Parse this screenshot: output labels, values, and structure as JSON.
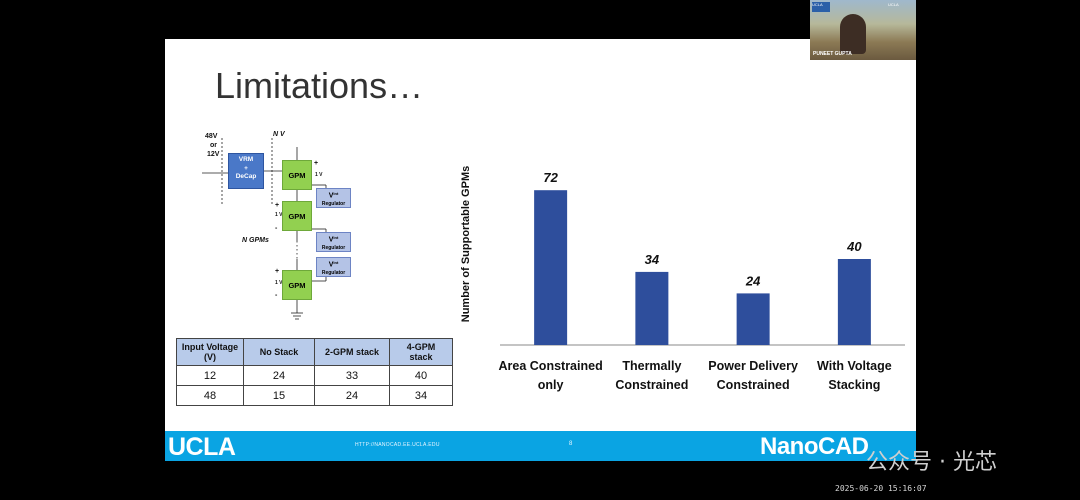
{
  "slide": {
    "title": "Limitations…",
    "diagram": {
      "input_v_1": "48V",
      "input_v_2": "or",
      "input_v_3": "12V",
      "n_v": "N V",
      "vrm_l1": "VRM",
      "vrm_l2": "+",
      "vrm_l3": "DeCap",
      "gpm": "GPM",
      "plus": "+",
      "minus": "-",
      "one_v": "1 V",
      "regulator_v": "V",
      "regulator_sup": "int",
      "regulator": "Regulator",
      "n_gpms": "N GPMs"
    },
    "table": {
      "headers": [
        "Input Voltage (V)",
        "No Stack",
        "2-GPM stack",
        "4-GPM stack"
      ],
      "rows": [
        [
          "12",
          "24",
          "33",
          "40"
        ],
        [
          "48",
          "15",
          "24",
          "34"
        ]
      ]
    },
    "footer": {
      "logo_left": "UCLA",
      "url": "HTTP://NANOCAD.EE.UCLA.EDU",
      "page": "8",
      "logo_right": "NanoCAD"
    }
  },
  "chart_data": {
    "type": "bar",
    "categories": [
      [
        "Area Constrained",
        "only"
      ],
      [
        "Thermally",
        "Constrained"
      ],
      [
        "Power Delivery",
        "Constrained"
      ],
      [
        "With Voltage",
        "Stacking"
      ]
    ],
    "values": [
      72,
      34,
      24,
      40
    ],
    "ylabel": "Number of Supportable GPMs",
    "ylim": [
      0,
      80
    ],
    "color": "#2e4e9c"
  },
  "webcam": {
    "name": "PUNEET GUPTA",
    "tag_left": "UCLA",
    "tag_right": "UCLA"
  },
  "watermark": "公众号 · 光芯",
  "timestamp": "2025-06-20 15:16:07"
}
